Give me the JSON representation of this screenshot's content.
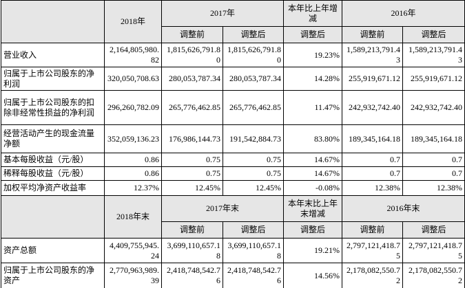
{
  "blocks": [
    {
      "header": {
        "year_a": "2018年",
        "year_b": "2017年",
        "change": "本年比上年增减",
        "year_c": "2016年",
        "sub": [
          "调整前",
          "调整后",
          "调整后",
          "调整前",
          "调整后"
        ]
      },
      "rows": [
        [
          "营业收入",
          "2,164,805,980.82",
          "1,815,626,791.80",
          "1,815,626,791.80",
          "19.23%",
          "1,589,213,791.43",
          "1,589,213,791.43"
        ],
        [
          "归属于上市公司股东的净利润",
          "320,050,708.63",
          "280,053,787.34",
          "280,053,787.34",
          "14.28%",
          "255,919,671.12",
          "255,919,671.12"
        ],
        [
          "归属于上市公司股东的扣除非经常性损益的净利润",
          "296,260,782.09",
          "265,776,462.85",
          "265,776,462.85",
          "11.47%",
          "242,932,742.40",
          "242,932,742.40"
        ],
        [
          "经营活动产生的现金流量净额",
          "352,059,136.23",
          "176,986,144.73",
          "191,542,884.73",
          "83.80%",
          "189,345,164.18",
          "189,345,164.18"
        ],
        [
          "基本每股收益（元/股）",
          "0.86",
          "0.75",
          "0.75",
          "14.67%",
          "0.7",
          "0.7"
        ],
        [
          "稀释每股收益（元/股）",
          "0.86",
          "0.75",
          "0.75",
          "14.67%",
          "0.7",
          "0.7"
        ],
        [
          "加权平均净资产收益率",
          "12.37%",
          "12.45%",
          "12.45%",
          "-0.08%",
          "12.38%",
          "12.38%"
        ]
      ]
    },
    {
      "header": {
        "year_a": "2018年末",
        "year_b": "2017年末",
        "change": "本年末比上年末增减",
        "year_c": "2016年末",
        "sub": [
          "调整前",
          "调整后",
          "调整后",
          "调整前",
          "调整后"
        ]
      },
      "rows": [
        [
          "资产总额",
          "4,409,755,945.24",
          "3,699,110,657.18",
          "3,699,110,657.18",
          "19.21%",
          "2,797,121,418.75",
          "2,797,121,418.75"
        ],
        [
          "归属于上市公司股东的净资产",
          "2,770,963,989.39",
          "2,418,748,542.76",
          "2,418,748,542.76",
          "14.56%",
          "2,178,082,550.72",
          "2,178,082,550.72"
        ]
      ]
    }
  ]
}
